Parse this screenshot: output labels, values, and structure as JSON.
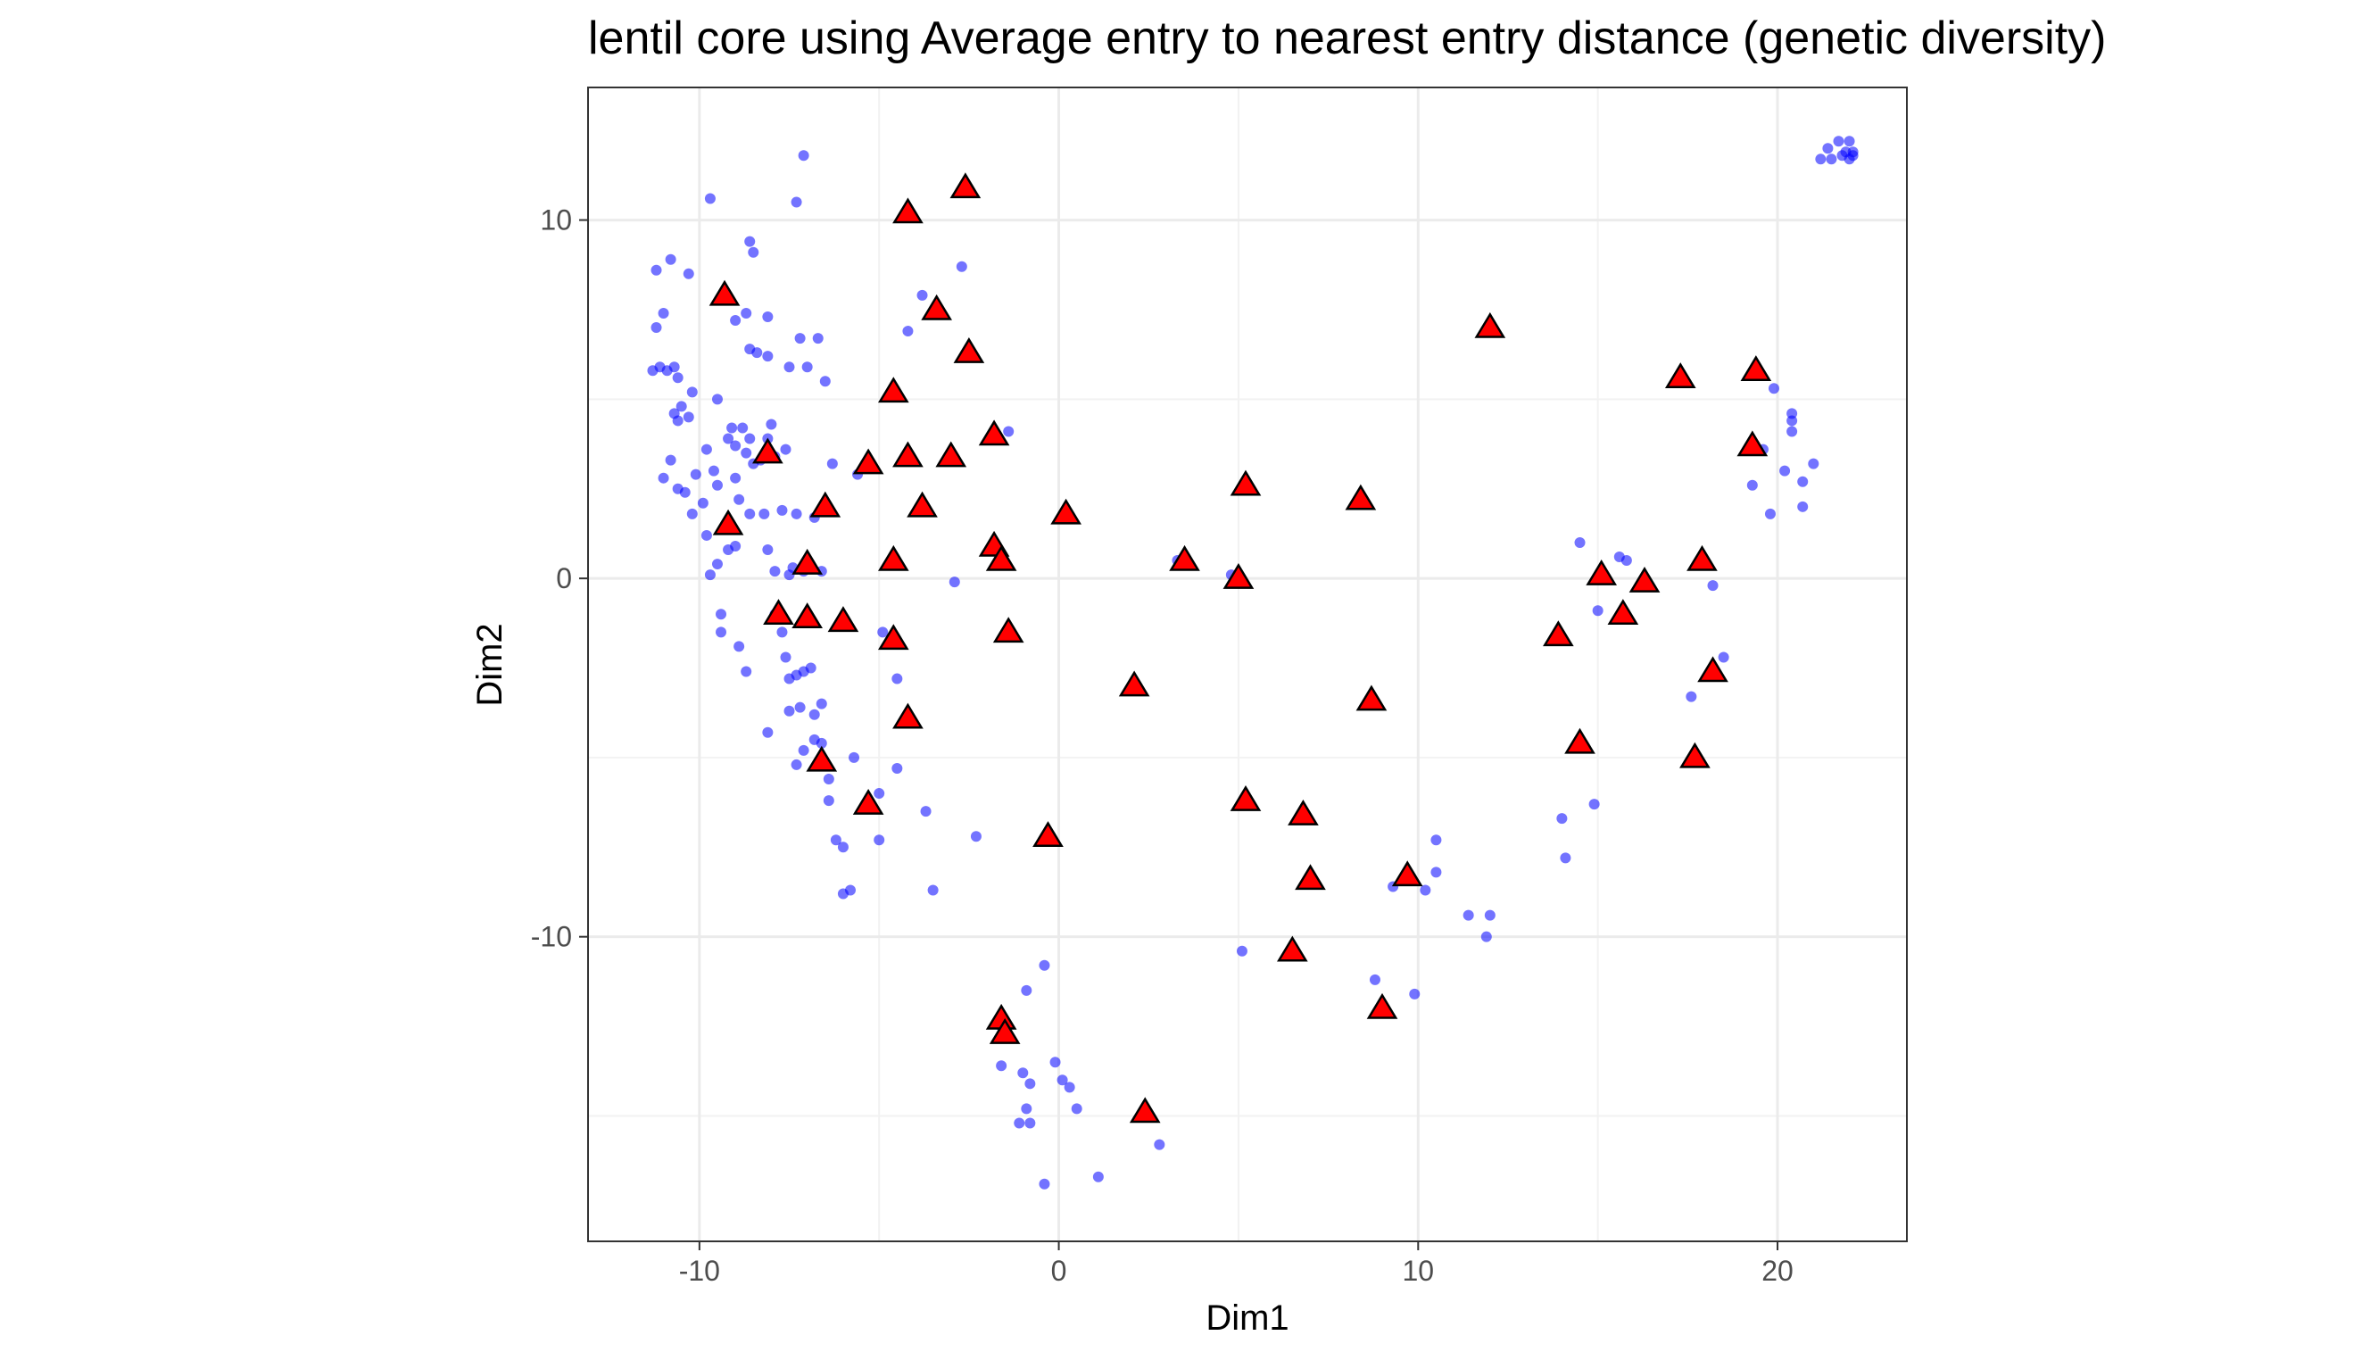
{
  "chart_data": {
    "type": "scatter",
    "title": "lentil core using Average entry to nearest entry distance (genetic diversity)",
    "xlabel": "Dim1",
    "ylabel": "Dim2",
    "xlim": [
      -13.1,
      23.6
    ],
    "ylim": [
      -18.5,
      13.7
    ],
    "x_ticks": [
      -10,
      0,
      10,
      20
    ],
    "x_tick_labels": [
      "-10",
      "0",
      "10",
      "20"
    ],
    "y_ticks": [
      -10,
      0,
      10
    ],
    "y_tick_labels": [
      "-10",
      "0",
      "10"
    ],
    "grid": true,
    "legend": "none",
    "series": [
      {
        "marker": "circle",
        "color": "#0000ff",
        "points": [
          [
            -11.3,
            5.8
          ],
          [
            -11.1,
            5.9
          ],
          [
            -10.9,
            5.8
          ],
          [
            -11.2,
            7.0
          ],
          [
            -11.0,
            7.4
          ],
          [
            -11.2,
            8.6
          ],
          [
            -10.8,
            8.9
          ],
          [
            -10.3,
            8.5
          ],
          [
            -9.7,
            10.6
          ],
          [
            -7.1,
            11.8
          ],
          [
            -7.3,
            10.5
          ],
          [
            -8.6,
            9.4
          ],
          [
            -8.5,
            9.1
          ],
          [
            -9.0,
            7.2
          ],
          [
            -8.7,
            7.4
          ],
          [
            -8.1,
            7.3
          ],
          [
            -7.2,
            6.7
          ],
          [
            -6.7,
            6.7
          ],
          [
            -8.6,
            6.4
          ],
          [
            -8.4,
            6.3
          ],
          [
            -8.1,
            6.2
          ],
          [
            -7.5,
            5.9
          ],
          [
            -7.0,
            5.9
          ],
          [
            -6.5,
            5.5
          ],
          [
            -10.7,
            5.9
          ],
          [
            -10.6,
            5.6
          ],
          [
            -10.2,
            5.2
          ],
          [
            -10.5,
            4.8
          ],
          [
            -10.7,
            4.6
          ],
          [
            -10.6,
            4.4
          ],
          [
            -10.3,
            4.5
          ],
          [
            -9.5,
            5.0
          ],
          [
            -9.1,
            4.2
          ],
          [
            -8.8,
            4.2
          ],
          [
            -8.6,
            3.9
          ],
          [
            -9.0,
            3.7
          ],
          [
            -9.2,
            3.9
          ],
          [
            -9.8,
            3.6
          ],
          [
            -10.8,
            3.3
          ],
          [
            -8.0,
            4.3
          ],
          [
            -8.1,
            3.9
          ],
          [
            -7.6,
            3.6
          ],
          [
            -7.9,
            3.4
          ],
          [
            -8.3,
            3.3
          ],
          [
            -8.5,
            3.2
          ],
          [
            -8.7,
            3.5
          ],
          [
            -9.6,
            3.0
          ],
          [
            -9.0,
            2.8
          ],
          [
            -9.5,
            2.6
          ],
          [
            -10.1,
            2.9
          ],
          [
            -10.4,
            2.4
          ],
          [
            -10.6,
            2.5
          ],
          [
            -11.0,
            2.8
          ],
          [
            -9.9,
            2.1
          ],
          [
            -10.2,
            1.8
          ],
          [
            -9.8,
            1.2
          ],
          [
            -9.7,
            0.1
          ],
          [
            -9.5,
            0.4
          ],
          [
            -9.2,
            0.8
          ],
          [
            -9.0,
            0.9
          ],
          [
            -8.9,
            2.2
          ],
          [
            -8.6,
            1.8
          ],
          [
            -8.2,
            1.8
          ],
          [
            -7.7,
            1.9
          ],
          [
            -7.3,
            1.8
          ],
          [
            -6.8,
            1.7
          ],
          [
            -8.1,
            0.8
          ],
          [
            -7.9,
            0.2
          ],
          [
            -7.5,
            0.1
          ],
          [
            -7.4,
            0.3
          ],
          [
            -7.1,
            0.2
          ],
          [
            -6.6,
            0.2
          ],
          [
            -9.4,
            -1.0
          ],
          [
            -9.4,
            -1.5
          ],
          [
            -8.9,
            -1.9
          ],
          [
            -8.7,
            -2.6
          ],
          [
            -7.9,
            -1.0
          ],
          [
            -7.7,
            -1.5
          ],
          [
            -7.6,
            -2.2
          ],
          [
            -7.5,
            -2.8
          ],
          [
            -7.3,
            -2.7
          ],
          [
            -7.1,
            -2.6
          ],
          [
            -7.5,
            -3.7
          ],
          [
            -7.2,
            -3.6
          ],
          [
            -6.9,
            -2.5
          ],
          [
            -6.8,
            -3.8
          ],
          [
            -6.6,
            -3.5
          ],
          [
            -8.1,
            -4.3
          ],
          [
            -7.1,
            -4.8
          ],
          [
            -7.3,
            -5.2
          ],
          [
            -6.8,
            -4.5
          ],
          [
            -6.6,
            -4.6
          ],
          [
            -6.4,
            -6.2
          ],
          [
            -5.7,
            -5.0
          ],
          [
            -6.4,
            -5.6
          ],
          [
            -5.0,
            -6.0
          ],
          [
            -5.0,
            -7.3
          ],
          [
            -6.2,
            -7.3
          ],
          [
            -6.0,
            -7.5
          ],
          [
            -6.0,
            -8.8
          ],
          [
            -5.8,
            -8.7
          ],
          [
            -4.9,
            -1.5
          ],
          [
            -4.5,
            -2.8
          ],
          [
            -4.5,
            -5.3
          ],
          [
            -3.7,
            -6.5
          ],
          [
            -3.5,
            -8.7
          ],
          [
            -2.3,
            -7.2
          ],
          [
            -6.3,
            3.2
          ],
          [
            -5.6,
            2.9
          ],
          [
            -4.2,
            6.9
          ],
          [
            -3.8,
            7.9
          ],
          [
            -2.7,
            8.7
          ],
          [
            -1.4,
            4.1
          ],
          [
            -2.9,
            -0.1
          ],
          [
            3.3,
            0.5
          ],
          [
            4.8,
            0.1
          ],
          [
            -0.4,
            -10.8
          ],
          [
            -0.9,
            -11.5
          ],
          [
            -1.6,
            -12.5
          ],
          [
            -1.6,
            -13.6
          ],
          [
            -1.0,
            -13.8
          ],
          [
            -0.8,
            -14.1
          ],
          [
            -0.9,
            -14.8
          ],
          [
            -1.1,
            -15.2
          ],
          [
            -0.8,
            -15.2
          ],
          [
            -0.1,
            -13.5
          ],
          [
            0.1,
            -14.0
          ],
          [
            0.3,
            -14.2
          ],
          [
            0.5,
            -14.8
          ],
          [
            1.1,
            -16.7
          ],
          [
            -0.4,
            -16.9
          ],
          [
            2.8,
            -15.8
          ],
          [
            5.1,
            -10.4
          ],
          [
            8.8,
            -11.2
          ],
          [
            9.9,
            -11.6
          ],
          [
            9.3,
            -8.6
          ],
          [
            9.7,
            -8.2
          ],
          [
            10.2,
            -8.7
          ],
          [
            10.5,
            -8.2
          ],
          [
            10.5,
            -7.3
          ],
          [
            11.4,
            -9.4
          ],
          [
            12.0,
            -9.4
          ],
          [
            11.9,
            -10.0
          ],
          [
            14.0,
            -6.7
          ],
          [
            14.1,
            -7.8
          ],
          [
            14.9,
            -6.3
          ],
          [
            14.5,
            1.0
          ],
          [
            15.0,
            -0.9
          ],
          [
            15.8,
            0.5
          ],
          [
            15.6,
            0.6
          ],
          [
            17.6,
            -3.3
          ],
          [
            18.5,
            -2.2
          ],
          [
            18.2,
            -0.2
          ],
          [
            19.3,
            2.6
          ],
          [
            19.6,
            3.6
          ],
          [
            20.2,
            3.0
          ],
          [
            20.4,
            4.1
          ],
          [
            20.4,
            4.4
          ],
          [
            20.4,
            4.6
          ],
          [
            20.7,
            2.7
          ],
          [
            20.7,
            2.0
          ],
          [
            21.0,
            3.2
          ],
          [
            19.9,
            5.3
          ],
          [
            19.8,
            1.8
          ],
          [
            21.2,
            11.7
          ],
          [
            21.5,
            11.7
          ],
          [
            21.4,
            12.0
          ],
          [
            21.7,
            12.2
          ],
          [
            21.8,
            11.8
          ],
          [
            21.9,
            11.9
          ],
          [
            22.0,
            12.2
          ],
          [
            22.1,
            11.8
          ],
          [
            22.0,
            11.7
          ],
          [
            22.1,
            11.9
          ]
        ]
      },
      {
        "marker": "triangle",
        "color": "#ff0000",
        "points": [
          [
            -9.3,
            7.9
          ],
          [
            -4.2,
            10.2
          ],
          [
            -2.6,
            10.9
          ],
          [
            -3.4,
            7.5
          ],
          [
            -2.5,
            6.3
          ],
          [
            -4.6,
            5.2
          ],
          [
            -1.8,
            4.0
          ],
          [
            -8.1,
            3.5
          ],
          [
            -5.3,
            3.2
          ],
          [
            -4.2,
            3.4
          ],
          [
            -3.0,
            3.4
          ],
          [
            -6.5,
            2.0
          ],
          [
            -3.8,
            2.0
          ],
          [
            0.2,
            1.8
          ],
          [
            -9.2,
            1.5
          ],
          [
            -1.8,
            0.9
          ],
          [
            -1.6,
            0.5
          ],
          [
            -7.0,
            0.4
          ],
          [
            -4.6,
            0.5
          ],
          [
            -7.8,
            -1.0
          ],
          [
            -7.0,
            -1.1
          ],
          [
            -6.0,
            -1.2
          ],
          [
            -4.6,
            -1.7
          ],
          [
            -1.4,
            -1.5
          ],
          [
            -4.2,
            -3.9
          ],
          [
            -6.6,
            -5.1
          ],
          [
            -5.3,
            -6.3
          ],
          [
            -0.3,
            -7.2
          ],
          [
            2.1,
            -3.0
          ],
          [
            3.5,
            0.5
          ],
          [
            5.0,
            0.0
          ],
          [
            5.2,
            2.6
          ],
          [
            8.4,
            2.2
          ],
          [
            8.7,
            -3.4
          ],
          [
            5.2,
            -6.2
          ],
          [
            6.8,
            -6.6
          ],
          [
            7.0,
            -8.4
          ],
          [
            6.5,
            -10.4
          ],
          [
            9.7,
            -8.3
          ],
          [
            9.0,
            -12.0
          ],
          [
            -1.6,
            -12.3
          ],
          [
            -1.5,
            -12.7
          ],
          [
            2.4,
            -14.9
          ],
          [
            12.0,
            7.0
          ],
          [
            13.9,
            -1.6
          ],
          [
            14.5,
            -4.6
          ],
          [
            15.1,
            0.1
          ],
          [
            15.7,
            -1.0
          ],
          [
            16.3,
            -0.1
          ],
          [
            17.3,
            5.6
          ],
          [
            17.9,
            0.5
          ],
          [
            17.7,
            -5.0
          ],
          [
            18.2,
            -2.6
          ],
          [
            19.4,
            5.8
          ],
          [
            19.3,
            3.7
          ]
        ]
      }
    ]
  }
}
